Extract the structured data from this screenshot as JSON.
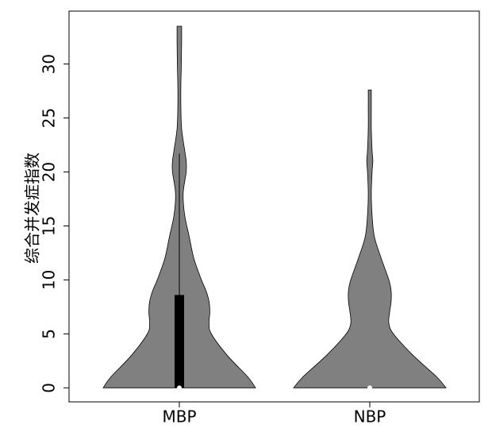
{
  "chart_data": {
    "type": "violin",
    "ylabel": "综合并发症指数",
    "categories": [
      "MBP",
      "NBP"
    ],
    "ylim": [
      -1.3,
      34.9
    ],
    "yticks": [
      0,
      5,
      10,
      15,
      20,
      25,
      30
    ],
    "color": "#808080",
    "violins": [
      {
        "density_y": [
          0,
          1,
          3,
          5,
          6,
          7,
          8,
          9,
          10,
          12,
          14,
          16,
          18,
          20,
          21,
          22,
          24,
          26,
          28,
          30,
          32,
          33.5
        ],
        "density": [
          1,
          0.9,
          0.63,
          0.42,
          0.39,
          0.4,
          0.39,
          0.35,
          0.29,
          0.19,
          0.13,
          0.07,
          0.05,
          0.09,
          0.09,
          0.07,
          0.03,
          0.02,
          0.02,
          0.026,
          0.03,
          0.03
        ],
        "box": {
          "whislo": 0,
          "q1": 0,
          "median": 0,
          "q3": 8.6,
          "whishi": 21.7
        }
      },
      {
        "density_y": [
          0,
          1,
          3,
          5,
          6,
          7,
          8,
          9,
          10,
          12,
          14,
          16,
          18,
          20,
          21,
          22,
          24,
          26,
          27.6
        ],
        "density": [
          1,
          0.88,
          0.57,
          0.31,
          0.25,
          0.26,
          0.28,
          0.28,
          0.25,
          0.15,
          0.06,
          0.03,
          0.02,
          0.03,
          0.04,
          0.03,
          0.02,
          0.02,
          0.02
        ],
        "box": {
          "whislo": 0,
          "q1": 0,
          "median": 0,
          "q3": 0,
          "whishi": 0
        }
      }
    ]
  }
}
